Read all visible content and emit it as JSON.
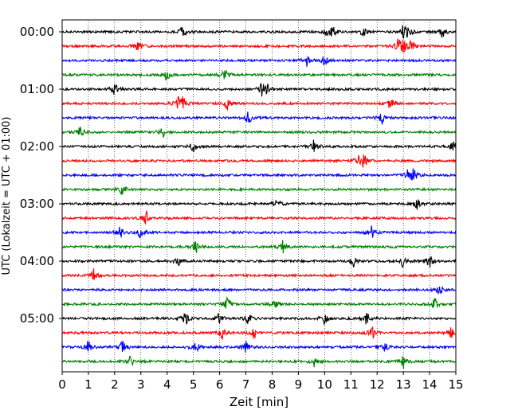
{
  "chart_data": {
    "type": "line",
    "title": "",
    "xlabel": "Zeit  [min]",
    "ylabel": "UTC (Lokalzeit = UTC + 01:00)",
    "xlim": [
      0,
      15
    ],
    "x_ticks": [
      "0",
      "1",
      "2",
      "3",
      "4",
      "5",
      "6",
      "7",
      "8",
      "9",
      "10",
      "11",
      "12",
      "13",
      "14",
      "15"
    ],
    "y_tick_labels": [
      "00:00",
      "01:00",
      "02:00",
      "03:00",
      "04:00",
      "05:00"
    ],
    "grid": "vertical dotted at each minute",
    "trace_interval_min": 15,
    "color_cycle": [
      "#000000",
      "#ff0000",
      "#0000ff",
      "#008000"
    ],
    "series": [
      {
        "start": "00:00",
        "events_min": [
          4.6,
          10.1,
          10.3,
          11.5,
          13.0,
          13.2,
          14.5
        ]
      },
      {
        "start": "00:15",
        "events_min": [
          2.9,
          12.8,
          13.0,
          13.3
        ]
      },
      {
        "start": "00:30",
        "events_min": [
          9.3,
          10.0
        ]
      },
      {
        "start": "00:45",
        "events_min": [
          4.0,
          6.2
        ]
      },
      {
        "start": "01:00",
        "events_min": [
          2.0,
          7.6,
          7.8
        ]
      },
      {
        "start": "01:15",
        "events_min": [
          4.4,
          4.6,
          6.3,
          12.5
        ]
      },
      {
        "start": "01:30",
        "events_min": [
          7.1,
          12.2
        ]
      },
      {
        "start": "01:45",
        "events_min": [
          0.7,
          3.8
        ]
      },
      {
        "start": "02:00",
        "events_min": [
          5.0,
          9.6,
          14.9
        ]
      },
      {
        "start": "02:15",
        "events_min": [
          11.3,
          11.5
        ]
      },
      {
        "start": "02:30",
        "events_min": [
          13.2,
          13.4
        ]
      },
      {
        "start": "02:45",
        "events_min": [
          2.3
        ]
      },
      {
        "start": "03:00",
        "events_min": [
          8.2,
          13.5
        ]
      },
      {
        "start": "03:15",
        "events_min": [
          3.2
        ]
      },
      {
        "start": "03:30",
        "events_min": [
          2.2,
          3.0,
          11.8
        ]
      },
      {
        "start": "03:45",
        "events_min": [
          5.1,
          8.4
        ]
      },
      {
        "start": "04:00",
        "events_min": [
          4.4,
          11.1,
          13.0,
          14.0
        ]
      },
      {
        "start": "04:15",
        "events_min": [
          1.2
        ]
      },
      {
        "start": "04:30",
        "events_min": [
          14.4
        ]
      },
      {
        "start": "04:45",
        "events_min": [
          6.3,
          8.1,
          14.2
        ]
      },
      {
        "start": "05:00",
        "events_min": [
          4.7,
          6.0,
          7.1,
          10.0,
          11.6
        ]
      },
      {
        "start": "05:15",
        "events_min": [
          6.1,
          7.3,
          11.8,
          14.8
        ]
      },
      {
        "start": "05:30",
        "events_min": [
          1.0,
          2.3,
          5.1,
          7.0,
          12.3
        ]
      },
      {
        "start": "05:45",
        "events_min": [
          2.6,
          9.6,
          13.0
        ]
      }
    ]
  }
}
